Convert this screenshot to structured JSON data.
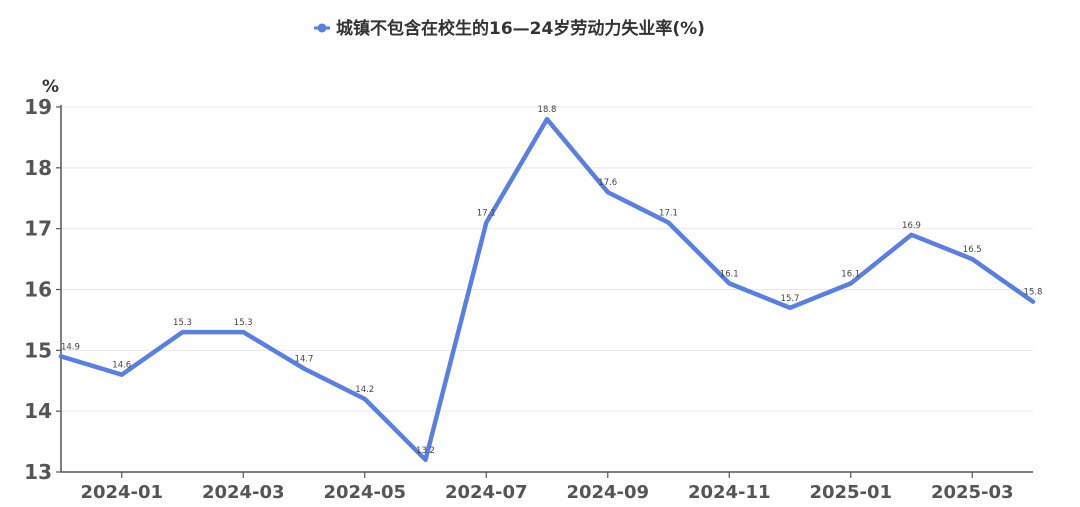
{
  "chart_data": {
    "type": "line",
    "title": "",
    "unit_label": "%",
    "ylim": [
      13,
      19
    ],
    "y_ticks": [
      13,
      14,
      15,
      16,
      17,
      18,
      19
    ],
    "grid": "horizontal",
    "legend_position": "top-center",
    "colors": {
      "line": "#5B7FDB",
      "grid": "#E8E8E8",
      "axis": "#555555"
    },
    "x": [
      "2023-12",
      "2024-01",
      "2024-02",
      "2024-03",
      "2024-04",
      "2024-05",
      "2024-06",
      "2024-07",
      "2024-08",
      "2024-09",
      "2024-10",
      "2024-11",
      "2024-12",
      "2025-01",
      "2025-02",
      "2025-03",
      "2025-04"
    ],
    "x_tick_labels": [
      "",
      "2024-01",
      "",
      "2024-03",
      "",
      "2024-05",
      "",
      "2024-07",
      "",
      "2024-09",
      "",
      "2024-11",
      "",
      "2025-01",
      "",
      "2025-03",
      ""
    ],
    "series": [
      {
        "name": "城镇不包含在校生的16—24岁劳动力失业率(%)",
        "values": [
          14.9,
          14.6,
          15.3,
          15.3,
          14.7,
          14.2,
          13.2,
          17.1,
          18.8,
          17.6,
          17.1,
          16.1,
          15.7,
          16.1,
          16.9,
          16.5,
          15.8
        ]
      }
    ]
  }
}
